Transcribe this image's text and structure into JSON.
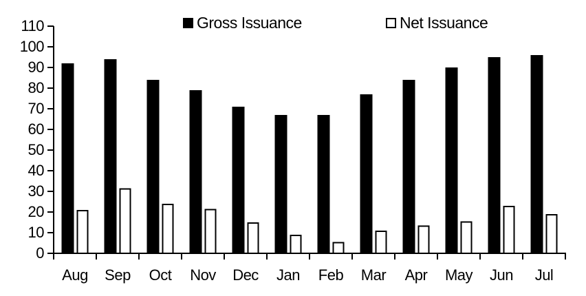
{
  "chart_data": {
    "type": "bar",
    "title": "",
    "xlabel": "",
    "ylabel": "",
    "categories": [
      "Aug",
      "Sep",
      "Oct",
      "Nov",
      "Dec",
      "Jan",
      "Feb",
      "Mar",
      "Apr",
      "May",
      "Jun",
      "Jul"
    ],
    "series": [
      {
        "name": "Gross Issuance",
        "style": "solid",
        "color": "#000000",
        "values": [
          92,
          94,
          84,
          79,
          71,
          67,
          67,
          77,
          84,
          90,
          95,
          96
        ]
      },
      {
        "name": "Net Issuance",
        "style": "hollow",
        "color": "#000000",
        "fill_color": "#FFFFFF",
        "values": [
          21,
          31.5,
          24,
          21.5,
          15,
          9,
          5.5,
          11,
          13.5,
          15.5,
          23,
          19
        ]
      }
    ],
    "ylim": [
      0,
      110
    ],
    "yticks": [
      0,
      10,
      20,
      30,
      40,
      50,
      60,
      70,
      80,
      90,
      100,
      110
    ],
    "grid": false,
    "legend_position": "top",
    "axis_color": "#000000",
    "background": "#FFFFFF"
  }
}
